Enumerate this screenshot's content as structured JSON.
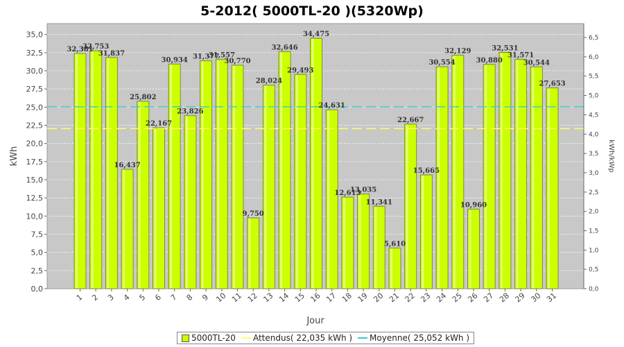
{
  "chart_data": {
    "type": "bar",
    "title": "5-2012( 5000TL-20 )(5320Wp)",
    "xlabel": "Jour",
    "ylabel": "kWh",
    "ylabel_right": "kWh/kWp",
    "ylim": [
      0,
      36.5
    ],
    "ylim_right": [
      0,
      6.86
    ],
    "yticks": [
      "0,0",
      "2,5",
      "5,0",
      "7,5",
      "10,0",
      "12,5",
      "15,0",
      "17,5",
      "20,0",
      "22,5",
      "25,0",
      "27,5",
      "30,0",
      "32,5",
      "35,0"
    ],
    "yticks_right": [
      "0,0",
      "0,5",
      "1,0",
      "1,5",
      "2,0",
      "2,5",
      "3,0",
      "3,5",
      "4,0",
      "4,5",
      "5,0",
      "5,5",
      "6,0",
      "6,5"
    ],
    "categories": [
      "1",
      "2",
      "3",
      "4",
      "5",
      "6",
      "7",
      "8",
      "9",
      "10",
      "11",
      "12",
      "13",
      "14",
      "15",
      "16",
      "17",
      "18",
      "19",
      "20",
      "21",
      "22",
      "23",
      "24",
      "25",
      "26",
      "27",
      "28",
      "29",
      "30",
      "31"
    ],
    "series": [
      {
        "name": "5000TL-20",
        "values": [
          32.381,
          32.753,
          31.837,
          16.437,
          25.802,
          22.167,
          30.934,
          23.826,
          31.377,
          31.557,
          30.77,
          9.75,
          28.024,
          32.646,
          29.493,
          34.475,
          24.631,
          12.613,
          13.035,
          11.341,
          5.61,
          22.667,
          15.665,
          30.554,
          32.129,
          10.96,
          30.88,
          32.531,
          31.571,
          30.544,
          27.653
        ],
        "labels": [
          "32,381",
          "32,753",
          "31,837",
          "16,437",
          "25,802",
          "22,167",
          "30,934",
          "23,826",
          "31,377",
          "31,557",
          "30,770",
          "9,750",
          "28,024",
          "32,646",
          "29,493",
          "34,475",
          "24,631",
          "12,613",
          "13,035",
          "11,341",
          "5,610",
          "22,667",
          "15,665",
          "30,554",
          "32,129",
          "10,960",
          "30,880",
          "32,531",
          "31,571",
          "30,544",
          "27,653"
        ],
        "color": "#ccff00"
      }
    ],
    "reference_lines": [
      {
        "name": "Attendus",
        "value": 22.035,
        "color": "#ffff66"
      },
      {
        "name": "Moyenne",
        "value": 25.052,
        "color": "#33cccc"
      }
    ],
    "grid": true,
    "legend_position": "bottom"
  },
  "legend": {
    "bar_label": "5000TL-20",
    "attendus_label": "Attendus( 22,035 kWh )",
    "moyenne_label": "Moyenne( 25,052 kWh )"
  },
  "colors": {
    "plot_bg": "#c8c8c8",
    "grid": "#ffffff",
    "bar": "#ccff00",
    "attendus": "#ffff66",
    "moyenne": "#33cccc"
  }
}
